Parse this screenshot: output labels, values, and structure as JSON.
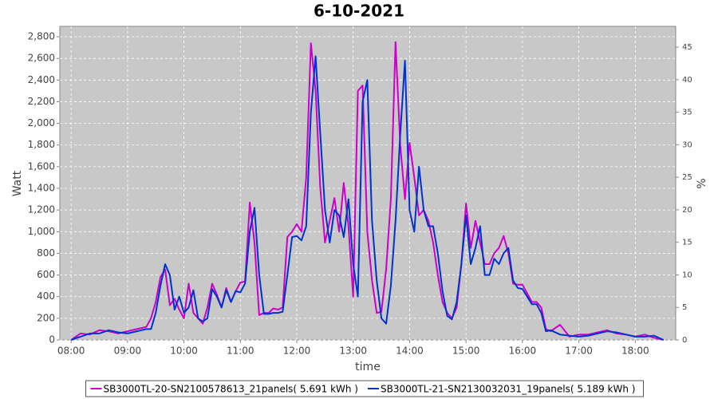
{
  "chart_data": {
    "type": "line",
    "title": "6-10-2021",
    "x_label": "time",
    "y_label": "Watt",
    "y2_label": "%",
    "x": [
      "08:00",
      "08:10",
      "08:20",
      "08:30",
      "08:40",
      "08:50",
      "09:00",
      "09:10",
      "09:20",
      "09:25",
      "09:30",
      "09:35",
      "09:40",
      "09:45",
      "09:50",
      "09:55",
      "10:00",
      "10:05",
      "10:10",
      "10:15",
      "10:20",
      "10:25",
      "10:30",
      "10:35",
      "10:40",
      "10:45",
      "10:50",
      "10:55",
      "11:00",
      "11:05",
      "11:10",
      "11:15",
      "11:20",
      "11:25",
      "11:30",
      "11:35",
      "11:40",
      "11:45",
      "11:50",
      "11:55",
      "12:00",
      "12:05",
      "12:10",
      "12:15",
      "12:20",
      "12:25",
      "12:30",
      "12:35",
      "12:40",
      "12:45",
      "12:50",
      "12:55",
      "13:00",
      "13:05",
      "13:10",
      "13:15",
      "13:20",
      "13:25",
      "13:30",
      "13:35",
      "13:40",
      "13:45",
      "13:50",
      "13:55",
      "14:00",
      "14:05",
      "14:10",
      "14:15",
      "14:20",
      "14:25",
      "14:30",
      "14:35",
      "14:40",
      "14:45",
      "14:50",
      "14:55",
      "15:00",
      "15:05",
      "15:10",
      "15:15",
      "15:20",
      "15:25",
      "15:30",
      "15:35",
      "15:40",
      "15:45",
      "15:50",
      "15:55",
      "16:00",
      "16:05",
      "16:10",
      "16:15",
      "16:20",
      "16:25",
      "16:30",
      "16:40",
      "16:50",
      "17:00",
      "17:10",
      "17:20",
      "17:30",
      "17:40",
      "17:50",
      "18:00",
      "18:10",
      "18:20",
      "18:30"
    ],
    "series": [
      {
        "name": "SB3000TL-20-SN2100578613_21panels( 5.691 kWh )",
        "color": "#cc00cc",
        "values": [
          0,
          60,
          50,
          90,
          80,
          60,
          80,
          100,
          120,
          200,
          350,
          580,
          650,
          320,
          380,
          280,
          200,
          520,
          250,
          200,
          150,
          300,
          520,
          420,
          300,
          480,
          350,
          450,
          530,
          540,
          1270,
          900,
          230,
          250,
          250,
          290,
          280,
          300,
          950,
          1000,
          1070,
          1000,
          1500,
          2740,
          2300,
          1400,
          900,
          1100,
          1310,
          1000,
          1450,
          1050,
          400,
          2300,
          2350,
          1000,
          550,
          250,
          260,
          650,
          1300,
          2750,
          1800,
          1300,
          1820,
          1500,
          1150,
          1200,
          1100,
          900,
          600,
          350,
          250,
          200,
          300,
          700,
          1260,
          850,
          1100,
          900,
          700,
          700,
          800,
          850,
          960,
          800,
          520,
          510,
          510,
          430,
          350,
          350,
          300,
          100,
          80,
          140,
          30,
          50,
          50,
          70,
          90,
          60,
          50,
          30,
          50,
          20,
          0
        ]
      },
      {
        "name": "SB3000TL-21-SN2130032031_19panels( 5.189 kWh )",
        "color": "#0033cc",
        "values": [
          0,
          30,
          60,
          60,
          90,
          70,
          60,
          80,
          100,
          100,
          250,
          500,
          700,
          600,
          280,
          400,
          250,
          300,
          460,
          200,
          170,
          200,
          470,
          400,
          300,
          460,
          350,
          450,
          440,
          520,
          1000,
          1220,
          600,
          240,
          240,
          250,
          250,
          260,
          600,
          950,
          960,
          920,
          1050,
          2100,
          2620,
          1900,
          1200,
          900,
          1200,
          1150,
          950,
          1300,
          700,
          400,
          2200,
          2400,
          1100,
          550,
          200,
          150,
          500,
          1100,
          1900,
          2580,
          1200,
          1000,
          1600,
          1200,
          1050,
          1050,
          800,
          450,
          220,
          190,
          350,
          700,
          1150,
          700,
          850,
          1050,
          600,
          600,
          750,
          700,
          800,
          850,
          550,
          480,
          470,
          400,
          330,
          330,
          250,
          80,
          90,
          50,
          40,
          30,
          40,
          60,
          80,
          70,
          50,
          30,
          30,
          40,
          0
        ]
      }
    ],
    "xlim": [
      "07:48",
      "18:43"
    ],
    "xticks": [
      "08:00",
      "09:00",
      "10:00",
      "11:00",
      "12:00",
      "13:00",
      "14:00",
      "15:00",
      "16:00",
      "17:00",
      "18:00"
    ],
    "ylim": [
      0,
      2896
    ],
    "yticks": [
      0,
      200,
      400,
      600,
      800,
      {
        "value": 1000,
        "label": "1,000"
      },
      {
        "value": 1200,
        "label": "1,200"
      },
      {
        "value": 1400,
        "label": "1,400"
      },
      {
        "value": 1600,
        "label": "1,600"
      },
      {
        "value": 1800,
        "label": "1,800"
      },
      {
        "value": 2000,
        "label": "2,000"
      },
      {
        "value": 2200,
        "label": "2,200"
      },
      {
        "value": 2400,
        "label": "2,400"
      },
      {
        "value": 2600,
        "label": "2,600"
      },
      {
        "value": 2800,
        "label": "2,800"
      }
    ],
    "y2lim": [
      0,
      48.2
    ],
    "y2ticks": [
      0,
      5,
      10,
      15,
      20,
      25,
      30,
      35,
      40,
      45
    ],
    "grid": true,
    "background": "#c8c8c8",
    "legend": "bottom"
  }
}
